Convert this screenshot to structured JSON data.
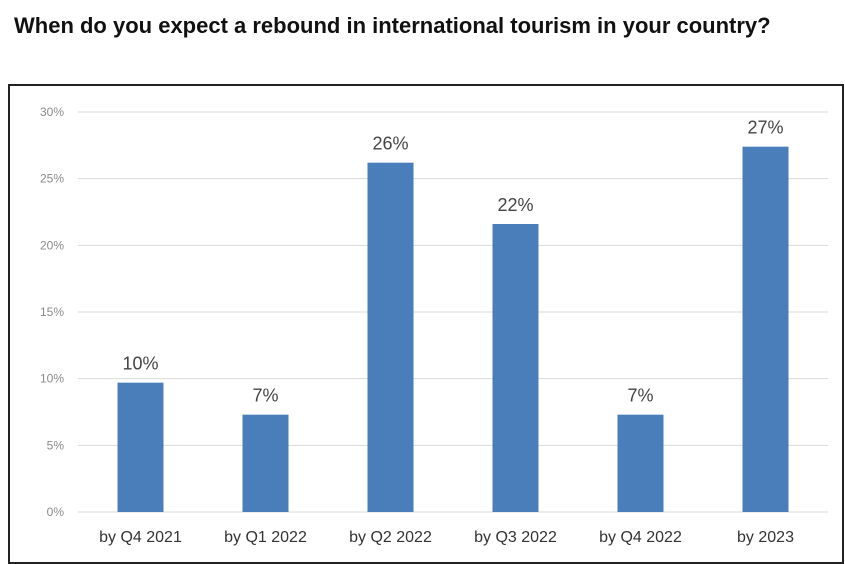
{
  "title": "When do you expect a rebound in international tourism in your country?",
  "chart_data": {
    "type": "bar",
    "title": "When do you expect a rebound in international tourism in your country?",
    "categories": [
      "by Q4 2021",
      "by Q1 2022",
      "by Q2 2022",
      "by Q3 2022",
      "by Q4 2022",
      "by 2023"
    ],
    "values": [
      9.7,
      7.3,
      26.2,
      21.6,
      7.3,
      27.4
    ],
    "data_labels": [
      "10%",
      "7%",
      "26%",
      "22%",
      "7%",
      "27%"
    ],
    "ylim": [
      0,
      30
    ],
    "yticks": [
      "0%",
      "5%",
      "10%",
      "15%",
      "20%",
      "25%",
      "30%"
    ],
    "ytick_values": [
      0,
      5,
      10,
      15,
      20,
      25,
      30
    ],
    "xlabel": "",
    "ylabel": "",
    "grid": true,
    "legend": "none",
    "bar_color": "#4a7ebb",
    "grid_color": "#d9d9d9"
  }
}
